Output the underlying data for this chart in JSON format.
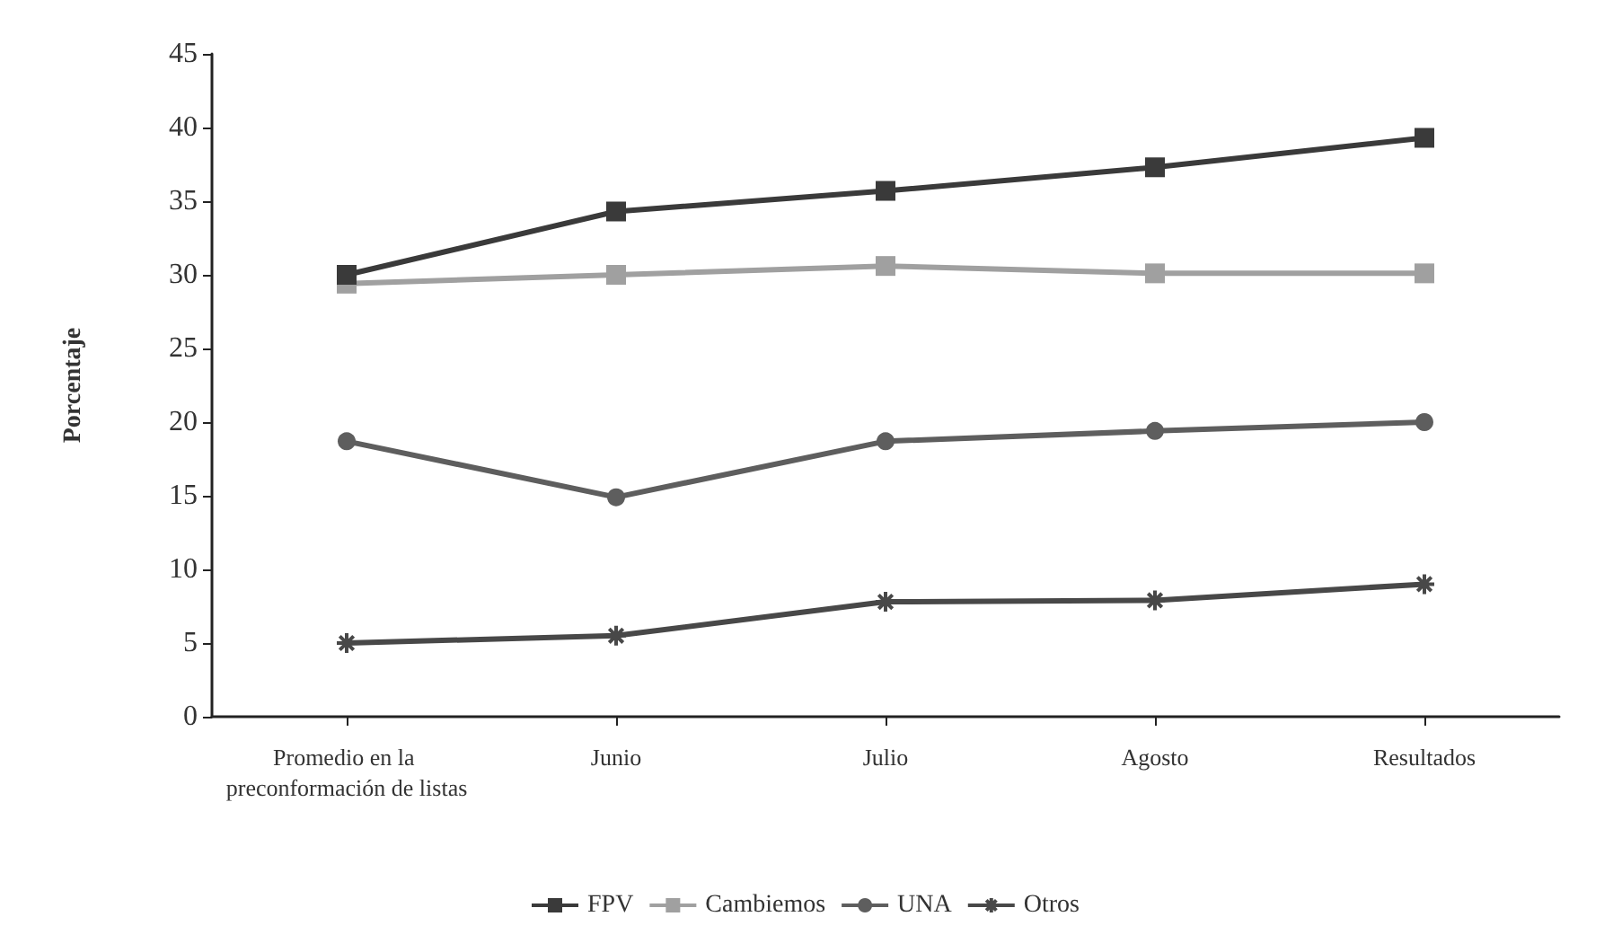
{
  "chart_data": {
    "type": "line",
    "ylabel": "Porcentaje",
    "categories": [
      "Promedio en la preconformación de listas",
      "Junio",
      "Julio",
      "Agosto",
      "Resultados"
    ],
    "series": [
      {
        "name": "FPV",
        "color": "#3a3a3a",
        "marker": "square",
        "values": [
          30,
          34.3,
          35.7,
          37.3,
          39.3
        ]
      },
      {
        "name": "Cambiemos",
        "color": "#a0a0a0",
        "marker": "square",
        "values": [
          29.4,
          30.0,
          30.6,
          30.1,
          30.1
        ]
      },
      {
        "name": "UNA",
        "color": "#5e5e5e",
        "marker": "circle",
        "values": [
          18.7,
          14.9,
          18.7,
          19.4,
          20.0
        ]
      },
      {
        "name": "Otros",
        "color": "#484848",
        "marker": "cross",
        "values": [
          5.0,
          5.5,
          7.8,
          7.9,
          9.0
        ]
      }
    ],
    "ylim": [
      0,
      45
    ],
    "yticks": [
      0,
      5,
      10,
      15,
      20,
      25,
      30,
      35,
      40,
      45
    ],
    "grid": false,
    "legend": "bottom",
    "line_style": "solid"
  }
}
